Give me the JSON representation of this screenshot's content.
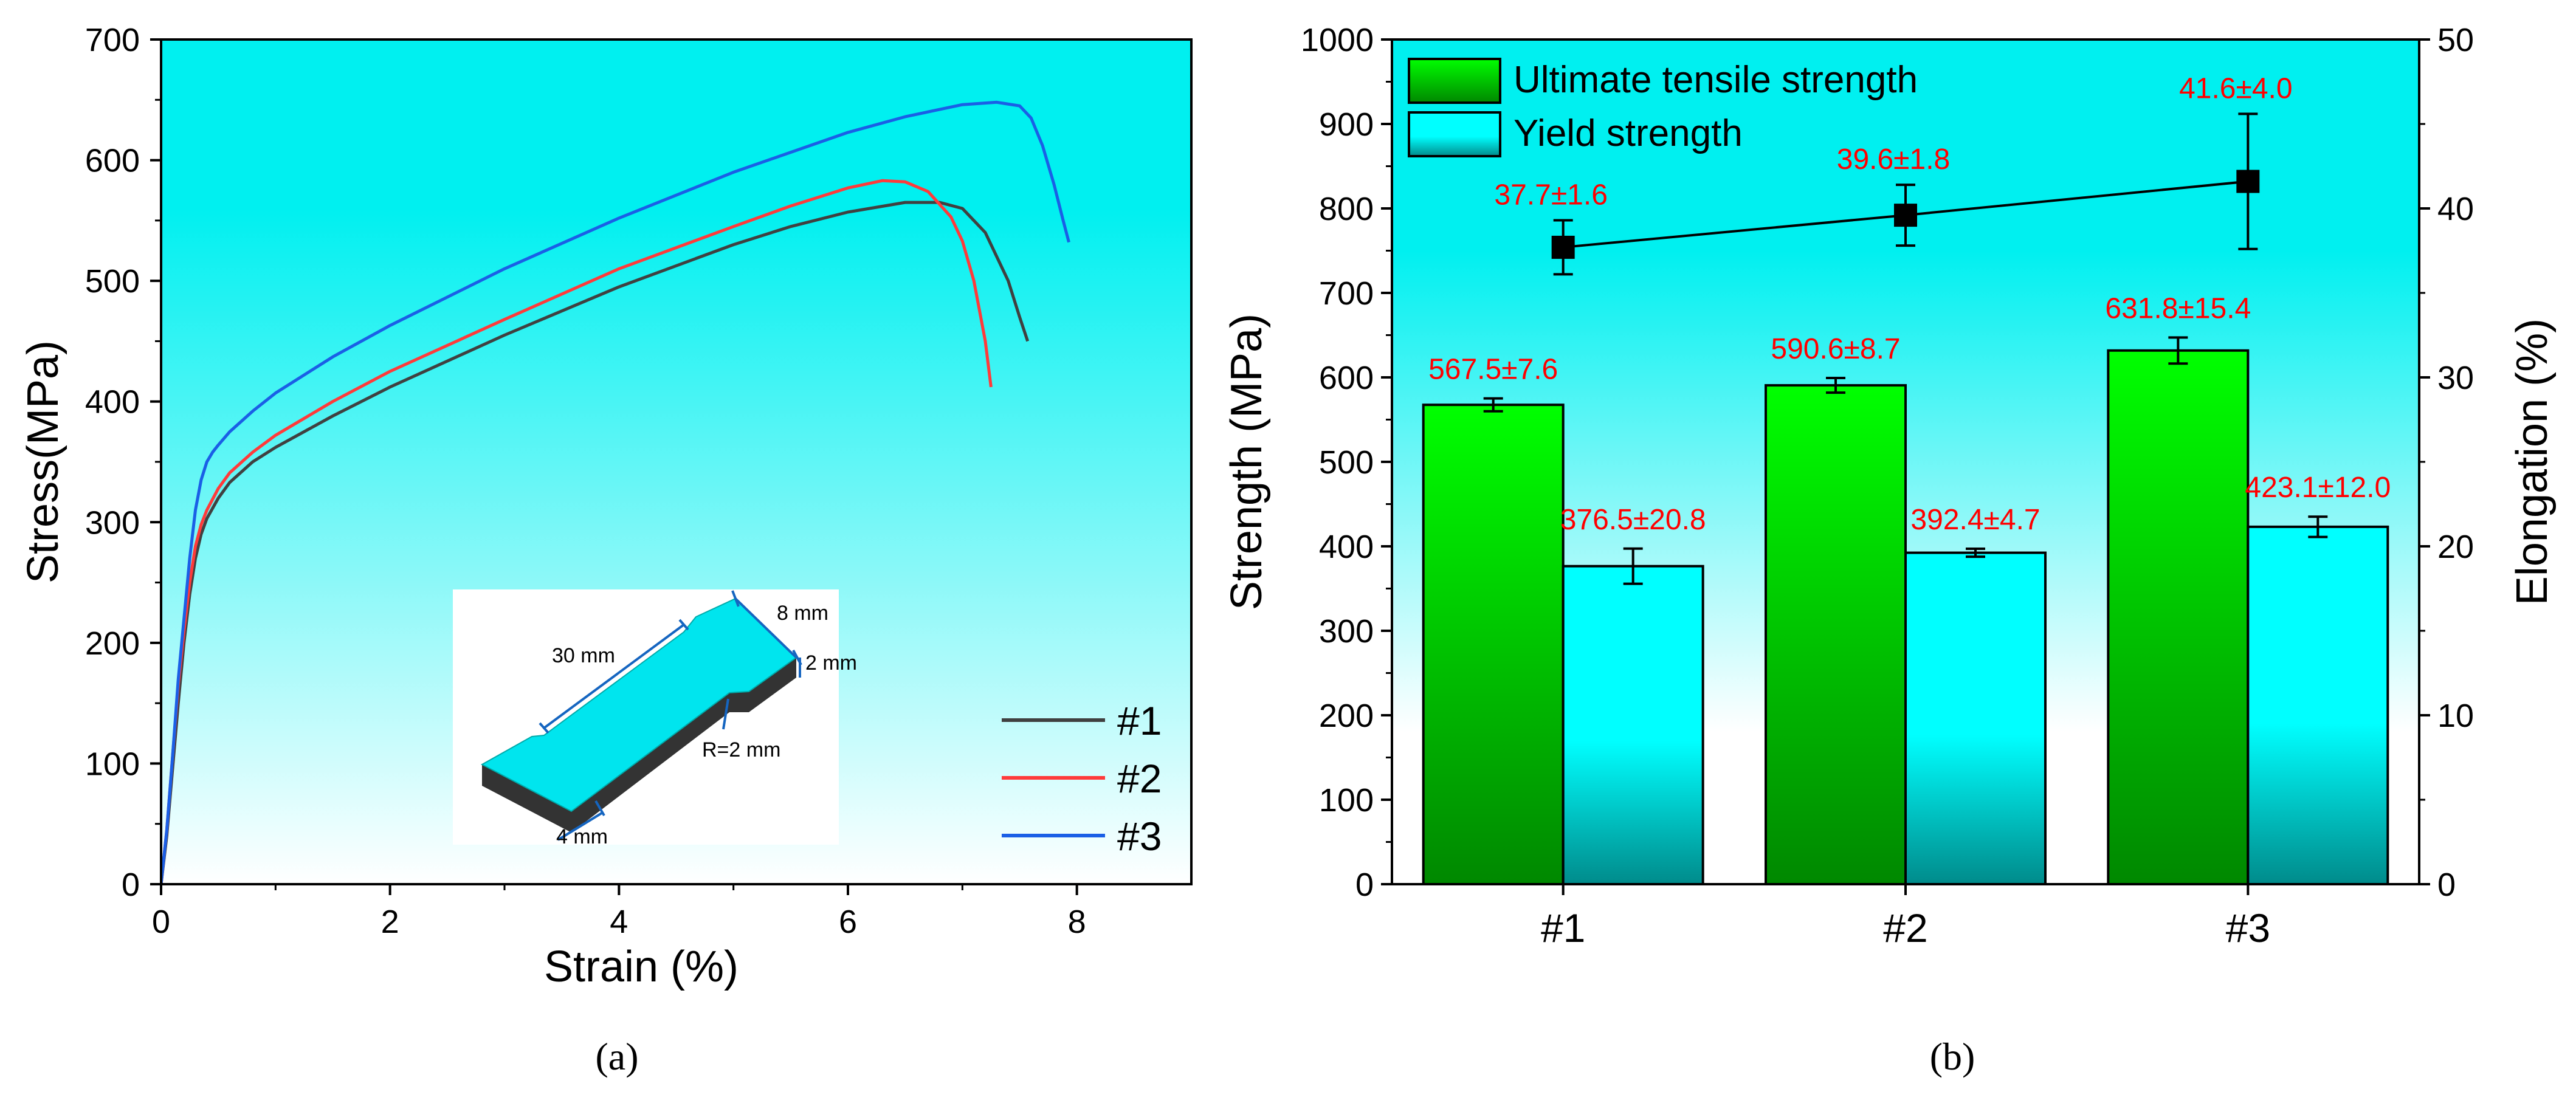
{
  "colors": {
    "bg_top": "#00F0F0",
    "bg_bottom": "#FFFFFF",
    "curve_1": "#404040",
    "curve_2": "#FF3A3A",
    "curve_3": "#1A5FE6",
    "uts_bar_top": "#00FF00",
    "uts_bar_bottom": "#008800",
    "ys_bar_top": "#00FFFF",
    "ys_bar_bottom": "#008B8B",
    "annotation": "#FF0000",
    "dimension": "#1565C0",
    "specimen_face": "#00E5EE",
    "specimen_side": "#333333"
  },
  "panel_labels": {
    "a": "(a)",
    "b": "(b)"
  },
  "chart_data": [
    {
      "type": "line",
      "title": "",
      "xlabel": "Strain (%)",
      "ylabel": "Stress(MPa)",
      "xlim": [
        0,
        9
      ],
      "ylim": [
        0,
        700
      ],
      "xticks": [
        "0",
        "2",
        "4",
        "6",
        "8"
      ],
      "yticks": [
        "0",
        "100",
        "200",
        "300",
        "400",
        "500",
        "600",
        "700"
      ],
      "legend": "bottom-right",
      "series": [
        {
          "name": "#1",
          "x": [
            0,
            0.05,
            0.1,
            0.15,
            0.2,
            0.25,
            0.3,
            0.35,
            0.4,
            0.5,
            0.6,
            0.8,
            1.0,
            1.5,
            2.0,
            3.0,
            4.0,
            5.0,
            5.5,
            6.0,
            6.5,
            6.8,
            7.0,
            7.2,
            7.4,
            7.5,
            7.57
          ],
          "y": [
            0,
            40,
            95,
            150,
            200,
            240,
            270,
            290,
            303,
            320,
            333,
            350,
            362,
            388,
            412,
            455,
            495,
            530,
            545,
            557,
            565,
            565,
            560,
            540,
            500,
            470,
            450
          ]
        },
        {
          "name": "#2",
          "x": [
            0,
            0.05,
            0.1,
            0.15,
            0.2,
            0.25,
            0.3,
            0.35,
            0.4,
            0.5,
            0.6,
            0.8,
            1.0,
            1.5,
            2.0,
            3.0,
            4.0,
            5.0,
            5.5,
            6.0,
            6.3,
            6.5,
            6.7,
            6.9,
            7.0,
            7.1,
            7.2,
            7.25
          ],
          "y": [
            0,
            45,
            105,
            165,
            210,
            250,
            280,
            298,
            310,
            328,
            341,
            358,
            372,
            400,
            425,
            468,
            510,
            545,
            562,
            577,
            583,
            582,
            574,
            553,
            533,
            500,
            450,
            412
          ]
        },
        {
          "name": "#3",
          "x": [
            0,
            0.05,
            0.1,
            0.15,
            0.2,
            0.25,
            0.3,
            0.35,
            0.4,
            0.45,
            0.5,
            0.6,
            0.8,
            1.0,
            1.5,
            2.0,
            3.0,
            4.0,
            5.0,
            6.0,
            6.5,
            7.0,
            7.3,
            7.5,
            7.6,
            7.7,
            7.8,
            7.88,
            7.93
          ],
          "y": [
            0,
            45,
            105,
            170,
            220,
            270,
            310,
            335,
            350,
            358,
            364,
            375,
            392,
            407,
            437,
            463,
            510,
            552,
            590,
            623,
            636,
            646,
            648,
            645,
            635,
            612,
            580,
            550,
            532
          ]
        }
      ],
      "inset": {
        "labels": [
          "8 mm",
          "30 mm",
          "2 mm",
          "R=2 mm",
          "4 mm"
        ]
      }
    },
    {
      "type": "bar",
      "title": "",
      "categories": [
        "#1",
        "#2",
        "#3"
      ],
      "ylabel": "Strength (MPa)",
      "ylim": [
        0,
        1000
      ],
      "yticks": [
        "0",
        "100",
        "200",
        "300",
        "400",
        "500",
        "600",
        "700",
        "800",
        "900",
        "1000"
      ],
      "y2label": "Elongation (%)",
      "y2lim": [
        0,
        50
      ],
      "y2ticks": [
        "0",
        "10",
        "20",
        "30",
        "40",
        "50"
      ],
      "legend": "top-left",
      "series": [
        {
          "name": "Ultimate tensile strength",
          "values": [
            567.5,
            590.6,
            631.8
          ],
          "errors": [
            7.6,
            8.7,
            15.4
          ],
          "labels": [
            "567.5±7.6",
            "590.6±8.7",
            "631.8±15.4"
          ]
        },
        {
          "name": "Yield strength",
          "values": [
            376.5,
            392.4,
            423.1
          ],
          "errors": [
            20.8,
            4.7,
            12.0
          ],
          "labels": [
            "376.5±20.8",
            "392.4±4.7",
            "423.1±12.0"
          ]
        }
      ],
      "elongation": {
        "values": [
          37.7,
          39.6,
          41.6
        ],
        "errors": [
          1.6,
          1.8,
          4.0
        ],
        "labels": [
          "37.7±1.6",
          "39.6±1.8",
          "41.6±4.0"
        ]
      }
    }
  ]
}
